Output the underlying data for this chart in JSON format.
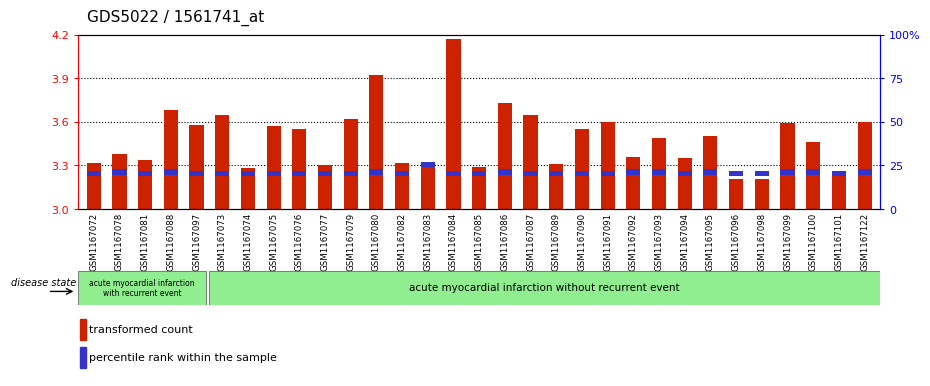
{
  "title": "GDS5022 / 1561741_at",
  "samples": [
    "GSM1167072",
    "GSM1167078",
    "GSM1167081",
    "GSM1167088",
    "GSM1167097",
    "GSM1167073",
    "GSM1167074",
    "GSM1167075",
    "GSM1167076",
    "GSM1167077",
    "GSM1167079",
    "GSM1167080",
    "GSM1167082",
    "GSM1167083",
    "GSM1167084",
    "GSM1167085",
    "GSM1167086",
    "GSM1167087",
    "GSM1167089",
    "GSM1167090",
    "GSM1167091",
    "GSM1167092",
    "GSM1167093",
    "GSM1167094",
    "GSM1167095",
    "GSM1167096",
    "GSM1167098",
    "GSM1167099",
    "GSM1167100",
    "GSM1167101",
    "GSM1167122"
  ],
  "bar_values": [
    3.32,
    3.38,
    3.34,
    3.68,
    3.58,
    3.65,
    3.28,
    3.57,
    3.55,
    3.3,
    3.62,
    3.92,
    3.32,
    3.32,
    4.17,
    3.29,
    3.73,
    3.65,
    3.31,
    3.55,
    3.6,
    3.36,
    3.49,
    3.35,
    3.5,
    3.21,
    3.21,
    3.59,
    3.46,
    3.25,
    3.6
  ],
  "percentile_values": [
    3.245,
    3.255,
    3.245,
    3.255,
    3.245,
    3.245,
    3.245,
    3.245,
    3.245,
    3.245,
    3.245,
    3.255,
    3.245,
    3.305,
    3.245,
    3.245,
    3.255,
    3.245,
    3.245,
    3.245,
    3.245,
    3.255,
    3.255,
    3.245,
    3.255,
    3.245,
    3.245,
    3.255,
    3.255,
    3.245,
    3.255
  ],
  "ylim": [
    3.0,
    4.2
  ],
  "yticks": [
    3.0,
    3.3,
    3.6,
    3.9,
    4.2
  ],
  "right_yticks": [
    0,
    25,
    50,
    75,
    100
  ],
  "right_ytick_labels": [
    "0",
    "25",
    "50",
    "75",
    "100%"
  ],
  "bar_color": "#CC2200",
  "percentile_color": "#3333CC",
  "xtick_bg_color": "#C8C8C8",
  "plot_bg": "#FFFFFF",
  "group1_label": "acute myocardial infarction\nwith recurrent event",
  "group2_label": "acute myocardial infarction without recurrent event",
  "group1_count": 5,
  "disease_state_label": "disease state",
  "legend_bar_label": "transformed count",
  "legend_pct_label": "percentile rank within the sample",
  "title_fontsize": 11,
  "axis_fontsize": 8,
  "grid_dotted_values": [
    3.3,
    3.6,
    3.9
  ]
}
